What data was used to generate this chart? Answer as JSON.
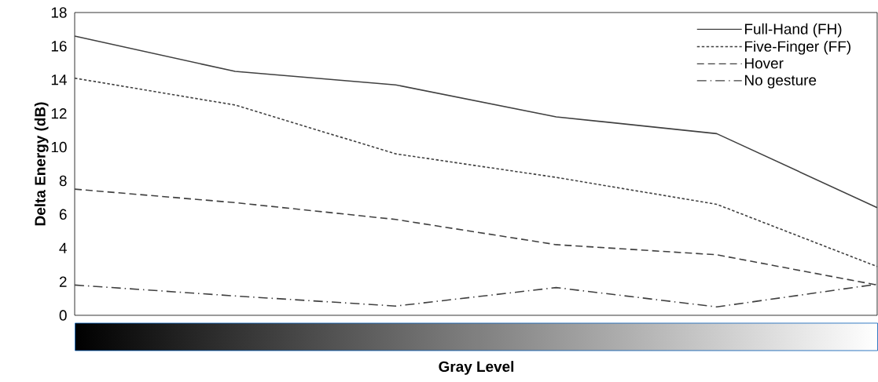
{
  "chart_data": {
    "type": "line",
    "xlabel": "Gray Level",
    "ylabel": "Delta Energy (dB)",
    "categories": [
      null,
      null,
      null,
      null,
      null,
      null
    ],
    "series": [
      {
        "name": "Full-Hand (FH)",
        "color": "#404040",
        "line_style": "solid",
        "values": [
          16.6,
          14.5,
          13.7,
          11.8,
          10.8,
          6.4
        ]
      },
      {
        "name": "Five-Finger (FF)",
        "color": "#404040",
        "line_style": "dotted",
        "values": [
          14.1,
          12.5,
          9.6,
          8.2,
          6.6,
          2.9
        ]
      },
      {
        "name": "Hover",
        "color": "#404040",
        "line_style": "dashed",
        "values": [
          7.5,
          6.7,
          5.7,
          4.2,
          3.6,
          1.8
        ]
      },
      {
        "name": "No gesture",
        "color": "#404040",
        "line_style": "dashdot",
        "values": [
          1.8,
          1.15,
          0.55,
          1.65,
          0.5,
          1.85
        ]
      }
    ],
    "ylim": [
      0,
      18
    ],
    "yticks": [
      0,
      2,
      4,
      6,
      8,
      10,
      12,
      14,
      16,
      18
    ],
    "grid": false,
    "legend": "top right",
    "marker": "none"
  }
}
